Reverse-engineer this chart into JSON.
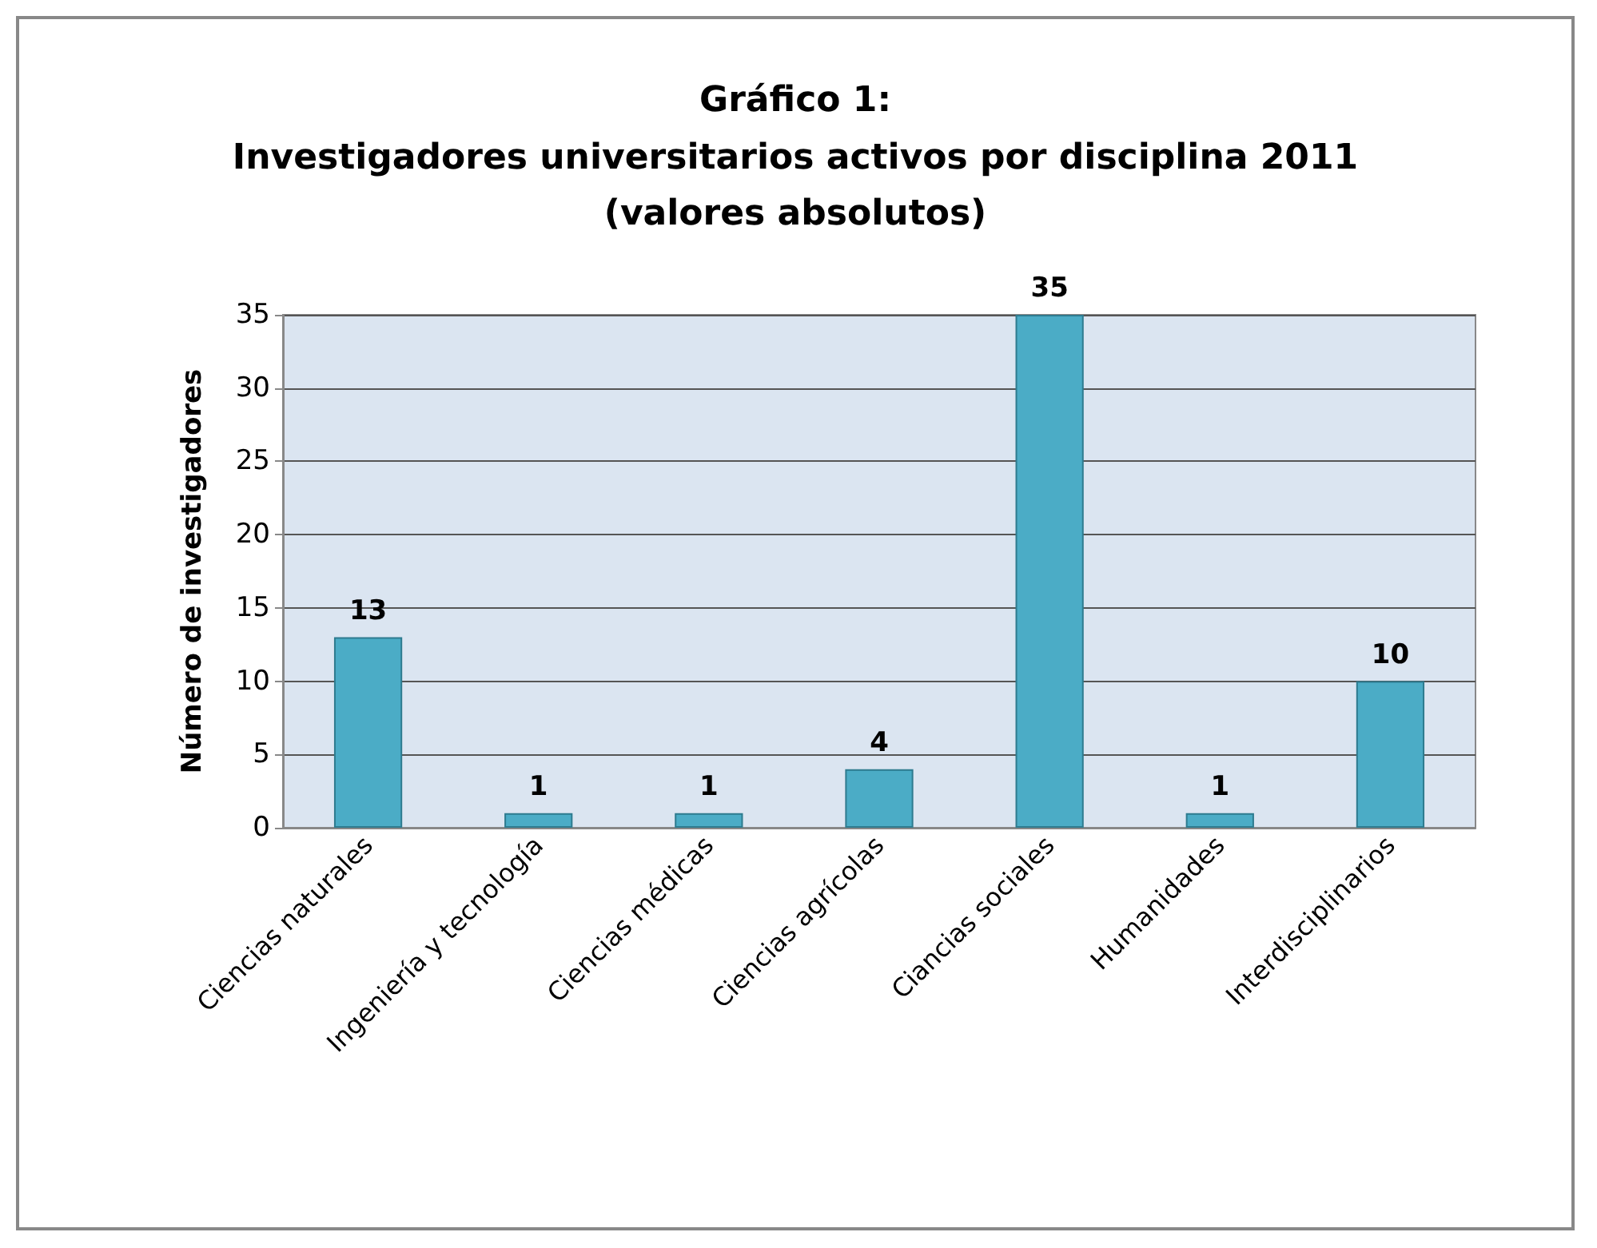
{
  "chart_data": {
    "type": "bar",
    "title": "Gráfico 1:\nInvestigadores universitarios activos por disciplina 2011",
    "subtitle": "(valores absolutos)",
    "ylabel": "Número de investigadores",
    "categories": [
      "Ciencias naturales",
      "Ingeniería y tecnología",
      "Ciencias médicas",
      "Ciencias agrícolas",
      "Ciancias sociales",
      "Humanidades",
      "Interdisciplinarios"
    ],
    "values": [
      13,
      1,
      1,
      4,
      35,
      1,
      10
    ],
    "color": "#4bacc6",
    "ylim": [
      0,
      35
    ],
    "yticks": [
      0,
      5,
      10,
      15,
      20,
      25,
      30,
      35
    ],
    "grid": "y",
    "data_labels": true
  }
}
